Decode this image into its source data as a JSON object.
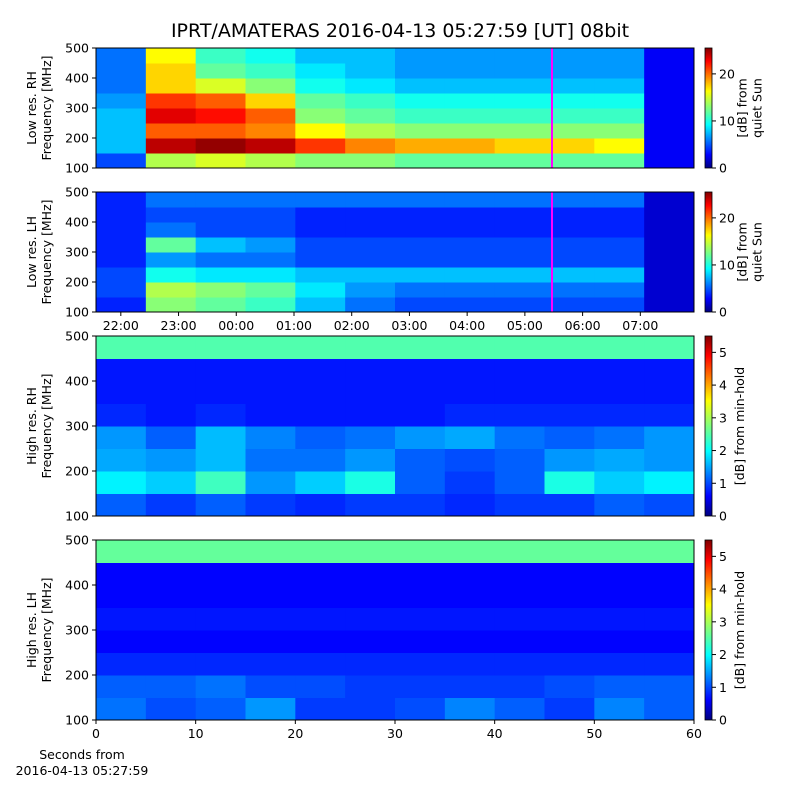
{
  "chart_data": [
    {
      "type": "heatmap",
      "title": "IPRT/AMATERAS 2016-04-13 05:27:59 [UT]   08bit",
      "ylabel": [
        "Low res. RH",
        "Frequency [MHz]"
      ],
      "clabel": [
        "[dB] from",
        "quiet Sun"
      ],
      "xlim": [
        21.57,
        31.93
      ],
      "ylim": [
        100,
        500
      ],
      "yticks": [
        100,
        200,
        300,
        400,
        500
      ],
      "clim": [
        0,
        25.5
      ],
      "cticks": [
        0,
        10,
        20
      ],
      "colormap": "jet",
      "marker_x": 29.47,
      "marker_color": "#ff00ff",
      "z": [
        [
          5,
          14,
          15,
          14,
          13,
          13,
          12,
          12,
          12,
          12,
          12,
          3
        ],
        [
          8,
          24,
          25,
          24,
          21,
          19,
          18,
          18,
          17,
          17,
          16,
          3
        ],
        [
          8,
          20,
          20,
          19,
          16,
          14,
          13,
          13,
          13,
          13,
          13,
          3
        ],
        [
          8,
          23,
          22,
          20,
          13,
          12,
          11,
          11,
          11,
          11,
          11,
          3
        ],
        [
          7,
          21,
          20,
          17,
          12,
          11,
          10,
          10,
          10,
          10,
          10,
          3
        ],
        [
          6,
          17,
          15,
          13,
          10,
          9,
          8,
          8,
          8,
          8,
          8,
          3
        ],
        [
          6,
          17,
          12,
          11,
          9,
          8,
          7,
          7,
          7,
          7,
          7,
          3
        ],
        [
          6,
          16,
          11,
          10,
          8,
          8,
          7,
          7,
          7,
          7,
          7,
          3
        ]
      ]
    },
    {
      "type": "heatmap",
      "ylabel": [
        "Low res. LH",
        "Frequency [MHz]"
      ],
      "clabel": [
        "[dB] from",
        "quiet Sun"
      ],
      "xlim": [
        21.57,
        31.93
      ],
      "xticks": [
        {
          "value": 22,
          "label": "22:00"
        },
        {
          "value": 23,
          "label": "23:00"
        },
        {
          "value": 24,
          "label": "00:00"
        },
        {
          "value": 25,
          "label": "01:00"
        },
        {
          "value": 26,
          "label": "02:00"
        },
        {
          "value": 27,
          "label": "03:00"
        },
        {
          "value": 28,
          "label": "04:00"
        },
        {
          "value": 29,
          "label": "05:00"
        },
        {
          "value": 30,
          "label": "06:00"
        },
        {
          "value": 31,
          "label": "07:00"
        }
      ],
      "ylim": [
        100,
        500
      ],
      "yticks": [
        100,
        200,
        300,
        400,
        500
      ],
      "clim": [
        0,
        25.5
      ],
      "cticks": [
        0,
        10,
        20
      ],
      "colormap": "jet",
      "marker_x": 29.47,
      "marker_color": "#ff00ff",
      "z": [
        [
          4,
          13,
          12,
          11,
          8,
          6,
          5,
          5,
          5,
          5,
          5,
          2
        ],
        [
          5,
          14,
          13,
          12,
          9,
          7,
          6,
          6,
          6,
          6,
          6,
          2
        ],
        [
          5,
          10,
          9,
          9,
          8,
          8,
          8,
          8,
          8,
          8,
          8,
          2
        ],
        [
          4,
          7,
          6,
          6,
          5,
          5,
          5,
          5,
          5,
          5,
          5,
          2
        ],
        [
          4,
          12,
          8,
          7,
          5,
          5,
          5,
          5,
          5,
          5,
          5,
          2
        ],
        [
          4,
          6,
          5,
          5,
          4,
          4,
          4,
          4,
          4,
          4,
          4,
          2
        ],
        [
          4,
          5,
          5,
          5,
          4,
          4,
          4,
          4,
          4,
          4,
          4,
          2
        ],
        [
          4,
          6,
          6,
          6,
          6,
          6,
          6,
          6,
          6,
          6,
          6,
          2
        ]
      ]
    },
    {
      "type": "heatmap",
      "ylabel": [
        "High res. RH",
        "Frequency [MHz]"
      ],
      "clabel": [
        "[dB] from min-hold"
      ],
      "xlim": [
        0,
        60
      ],
      "ylim": [
        100,
        500
      ],
      "yticks": [
        100,
        200,
        300,
        400,
        500
      ],
      "clim": [
        0,
        5.5
      ],
      "cticks": [
        0,
        1,
        2,
        3,
        4,
        5
      ],
      "colormap": "jet",
      "z": [
        [
          1.2,
          1.0,
          1.2,
          1.0,
          0.9,
          1.0,
          1.0,
          0.9,
          1.0,
          1.0,
          1.2,
          1.1
        ],
        [
          2.0,
          1.8,
          2.4,
          1.5,
          1.8,
          2.2,
          1.2,
          1.0,
          1.2,
          2.2,
          1.8,
          2.0
        ],
        [
          1.6,
          1.5,
          1.7,
          1.3,
          1.3,
          1.5,
          1.2,
          1.1,
          1.2,
          1.5,
          1.6,
          1.5
        ],
        [
          1.5,
          1.2,
          1.7,
          1.4,
          1.2,
          1.3,
          1.5,
          1.6,
          1.3,
          1.2,
          1.3,
          1.5
        ],
        [
          0.9,
          0.8,
          0.9,
          0.8,
          0.8,
          0.8,
          0.8,
          0.9,
          0.9,
          0.9,
          0.9,
          0.9
        ],
        [
          0.8,
          0.8,
          0.8,
          0.8,
          0.8,
          0.8,
          0.8,
          0.8,
          0.8,
          0.8,
          0.8,
          0.8
        ],
        [
          0.8,
          0.8,
          0.8,
          0.8,
          0.8,
          0.8,
          0.8,
          0.8,
          0.8,
          0.8,
          0.8,
          0.8
        ],
        [
          2.5,
          2.5,
          2.5,
          2.5,
          2.5,
          2.5,
          2.5,
          2.5,
          2.5,
          2.5,
          2.5,
          2.5
        ]
      ]
    },
    {
      "type": "heatmap",
      "ylabel": [
        "High res. LH",
        "Frequency [MHz]"
      ],
      "clabel": [
        "[dB] from min-hold"
      ],
      "xlabel": [
        "Seconds from",
        "2016-04-13 05:27:59"
      ],
      "xlim": [
        0,
        60
      ],
      "xticks": [
        0,
        10,
        20,
        30,
        40,
        50,
        60
      ],
      "ylim": [
        100,
        500
      ],
      "yticks": [
        100,
        200,
        300,
        400,
        500
      ],
      "clim": [
        0,
        5.5
      ],
      "cticks": [
        0,
        1,
        2,
        3,
        4,
        5
      ],
      "colormap": "jet",
      "z": [
        [
          1.3,
          1.1,
          1.2,
          1.5,
          1.0,
          1.0,
          1.1,
          1.4,
          1.2,
          1.0,
          1.4,
          1.2
        ],
        [
          1.2,
          1.2,
          1.3,
          1.1,
          1.1,
          1.0,
          1.0,
          1.0,
          1.0,
          1.1,
          1.2,
          1.2
        ],
        [
          0.9,
          0.9,
          0.9,
          0.9,
          0.9,
          0.9,
          0.9,
          0.9,
          0.9,
          0.9,
          0.9,
          0.9
        ],
        [
          0.7,
          0.7,
          0.7,
          0.7,
          0.7,
          0.7,
          0.7,
          0.7,
          0.7,
          0.7,
          0.7,
          0.7
        ],
        [
          0.8,
          0.8,
          0.8,
          0.8,
          0.8,
          0.8,
          0.8,
          0.8,
          0.8,
          0.8,
          0.8,
          0.8
        ],
        [
          0.7,
          0.7,
          0.7,
          0.7,
          0.7,
          0.7,
          0.7,
          0.7,
          0.7,
          0.7,
          0.7,
          0.7
        ],
        [
          0.7,
          0.7,
          0.7,
          0.7,
          0.7,
          0.7,
          0.7,
          0.7,
          0.7,
          0.7,
          0.7,
          0.7
        ],
        [
          2.6,
          2.6,
          2.6,
          2.6,
          2.6,
          2.6,
          2.6,
          2.6,
          2.6,
          2.6,
          2.6,
          2.6
        ]
      ]
    }
  ]
}
